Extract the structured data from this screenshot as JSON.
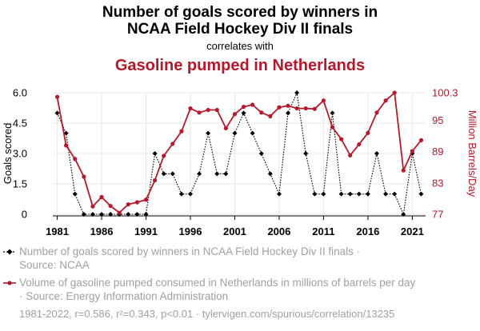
{
  "chart_data": {
    "type": "line",
    "title_lines": [
      "Number of goals scored by winners in",
      "NCAA Field Hockey Div II finals"
    ],
    "subtitle": "correlates with",
    "title2": "Gasoline pumped in Netherlands",
    "x": [
      1981,
      1982,
      1983,
      1984,
      1985,
      1986,
      1987,
      1988,
      1989,
      1990,
      1991,
      1992,
      1993,
      1994,
      1995,
      1996,
      1997,
      1998,
      1999,
      2000,
      2001,
      2002,
      2003,
      2004,
      2005,
      2006,
      2007,
      2008,
      2009,
      2010,
      2011,
      2012,
      2013,
      2014,
      2015,
      2016,
      2017,
      2018,
      2019,
      2020,
      2021,
      2022
    ],
    "xticks": [
      1981,
      1986,
      1991,
      1996,
      2001,
      2006,
      2011,
      2016,
      2021
    ],
    "xtick_labels": [
      "1981",
      "1986",
      "1991",
      "1996",
      "2001",
      "2006",
      "2011",
      "2016",
      "2021"
    ],
    "xlim": [
      1980.5,
      2022.5
    ],
    "series": [
      {
        "name": "Number of goals scored by winners in NCAA Field Hockey Div II finals",
        "axis": "left",
        "color": "#000000",
        "style": "dotted",
        "marker": "diamond",
        "values": [
          5,
          4,
          1,
          0,
          0,
          0,
          0,
          0,
          0,
          0,
          0,
          3,
          2,
          2,
          1,
          1,
          2,
          4,
          2,
          2,
          4,
          5,
          4,
          3,
          2,
          1,
          5,
          6,
          3,
          1,
          1,
          5,
          1,
          1,
          1,
          1,
          3,
          1,
          1,
          0,
          3,
          1
        ]
      },
      {
        "name": "Volume of gasoline pumped consumed in Netherlands in millions of barrels per day",
        "axis": "right",
        "color": "#b5192b",
        "style": "solid",
        "marker": "circle",
        "values": [
          99.5,
          90.2,
          87.6,
          84.2,
          78.5,
          80.3,
          78.6,
          77.3,
          78.9,
          79.3,
          79.8,
          83.5,
          88.2,
          90.5,
          92.9,
          97.3,
          96.5,
          97.0,
          97.0,
          93.5,
          96.2,
          97.6,
          98.0,
          96.5,
          95.8,
          97.5,
          97.8,
          97.3,
          97.3,
          97.2,
          98.8,
          93.7,
          91.4,
          88.3,
          90.4,
          92.6,
          96.5,
          98.8,
          100.3,
          85.4,
          89.1,
          91.2
        ]
      }
    ],
    "ylabel_left": "Goals scored",
    "ylim_left": [
      0,
      6
    ],
    "yticks_left": [
      "0",
      "1.5",
      "3.0",
      "4.5",
      "6.0"
    ],
    "ytick_values_left": [
      0,
      1.5,
      3,
      4.5,
      6
    ],
    "ylabel_right": "Million Barrels/Day",
    "ylim_right": [
      77,
      100.3
    ],
    "yticks_right": [
      "77",
      "83",
      "89",
      "95",
      "100.3"
    ],
    "ytick_values_right": [
      77,
      83,
      89,
      95,
      100.3
    ],
    "grid": true,
    "legend": [
      {
        "line1": "Number of goals scored by winners in NCAA Field Hockey Div II finals ·",
        "line2": "Source: NCAA"
      },
      {
        "line1": "Volume of gasoline pumped consumed in Netherlands in millions of barrels per day",
        "line2": "· Source: Energy Information Administration"
      }
    ],
    "footer": "1981-2022, r=0.586, r²=0.343, p<0.01 · tylervigen.com/spurious/correlation/13235"
  },
  "colors": {
    "accent": "#b5192b",
    "left_series": "#000000",
    "grid": "#e8e8e8",
    "muted_text": "#a0a0a0"
  }
}
